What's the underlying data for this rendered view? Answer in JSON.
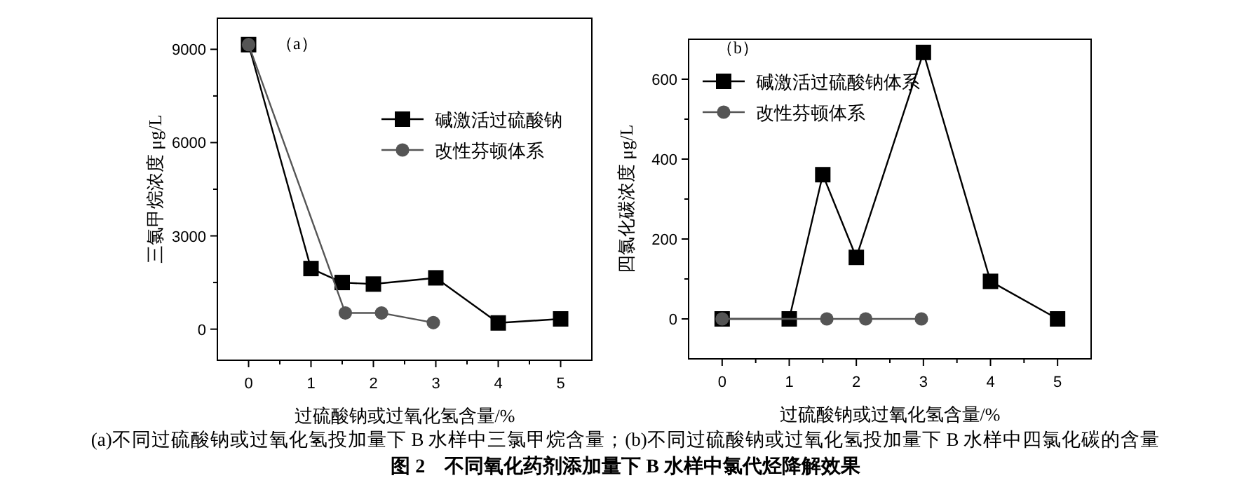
{
  "chart_data": [
    {
      "type": "line",
      "xlabel": "过硫酸钠或过氧化氢含量/%",
      "ylabel": "三氯甲烷浓度 μg/L",
      "xlim": [
        -0.5,
        5.5
      ],
      "ylim": [
        -1000,
        10000
      ],
      "xticks": [
        0,
        {
          "value": 0.5,
          "label": null
        },
        1,
        {
          "value": 1.5,
          "label": null
        },
        2,
        {
          "value": 2.5,
          "label": null
        },
        3,
        {
          "value": 3.5,
          "label": null
        },
        4,
        {
          "value": 4.5,
          "label": null
        },
        5
      ],
      "yticks": [
        0,
        {
          "value": 1500,
          "label": null
        },
        3000,
        {
          "value": 4500,
          "label": null
        },
        6000,
        {
          "value": 7500,
          "label": null
        },
        9000
      ],
      "legend": "top right",
      "grid": false,
      "series": [
        {
          "name": "碱激活过硫酸钠",
          "color": "#000000",
          "marker": "square",
          "x": [
            0,
            1,
            1.5,
            2,
            3,
            4,
            5
          ],
          "values": [
            9150,
            1950,
            1500,
            1450,
            1650,
            200,
            330
          ]
        },
        {
          "name": "改性芬顿体系",
          "color": "#555555",
          "marker": "circle",
          "x": [
            0,
            1.55,
            2.13,
            2.96
          ],
          "values": [
            9150,
            520,
            520,
            210
          ]
        }
      ],
      "annotations": [
        "（a）",
        "(a)不同过硫酸钠或过氧化氢投加量下 B 水样中三氯甲烷含量；(b)不同过硫酸钠或过氧化氢投加量下 B 水样中四氯化碳的含量",
        "图 2　不同氧化药剂添加量下 B 水样中氯代烃降解效果"
      ]
    },
    {
      "type": "line",
      "xlabel": "过硫酸钠或过氧化氢含量/%",
      "ylabel": "四氯化碳浓度 μg/L",
      "xlim": [
        -0.5,
        5.5
      ],
      "ylim": [
        -100,
        700
      ],
      "xticks": [
        0,
        {
          "value": 0.5,
          "label": null
        },
        1,
        {
          "value": 1.5,
          "label": null
        },
        2,
        {
          "value": 2.5,
          "label": null
        },
        3,
        {
          "value": 3.5,
          "label": null
        },
        4,
        {
          "value": 4.5,
          "label": null
        },
        5
      ],
      "yticks": [
        0,
        {
          "value": 100,
          "label": null
        },
        200,
        {
          "value": 300,
          "label": null
        },
        400,
        {
          "value": 500,
          "label": null
        },
        600
      ],
      "legend": "top left",
      "grid": false,
      "series": [
        {
          "name": "碱激活过硫酸钠体系",
          "color": "#000000",
          "marker": "square",
          "x": [
            0,
            1,
            1.5,
            2,
            3,
            4,
            5
          ],
          "values": [
            0,
            0,
            361,
            154,
            667,
            94,
            0
          ]
        },
        {
          "name": "改性芬顿体系",
          "color": "#555555",
          "marker": "circle",
          "x": [
            0,
            1.56,
            2.14,
            2.97
          ],
          "values": [
            0,
            0,
            0,
            0
          ]
        }
      ],
      "annotations": [
        "（b）"
      ]
    }
  ]
}
